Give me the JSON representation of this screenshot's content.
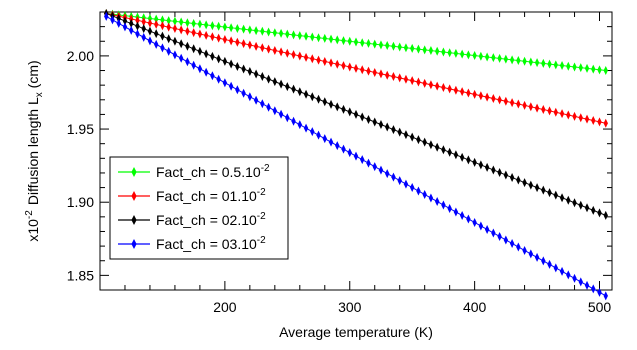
{
  "chart_data": {
    "type": "line",
    "x": {
      "label": "Average temperature (K)",
      "range": [
        100,
        510
      ],
      "ticks": [
        200,
        300,
        400,
        500
      ],
      "tick_labels": [
        "200",
        "300",
        "400",
        "500"
      ],
      "minor_step": 20
    },
    "y": {
      "label_prefix": "x10",
      "label_prefix_exponent": "-2",
      "label_main": "Diffusion length L",
      "label_sub": "x",
      "label_unit": " (cm)",
      "range": [
        1.84,
        2.03
      ],
      "ticks": [
        1.85,
        1.9,
        1.95,
        2.0
      ],
      "tick_labels": [
        "1.85",
        "1.90",
        "1.95",
        "2.00"
      ],
      "minor_step": 0.01
    },
    "series": [
      {
        "name_base": "Fact_ch = 0.5.10",
        "name_exp": "-2",
        "color": "#00ff00",
        "x": [
          105,
          505
        ],
        "y": [
          2.029,
          1.99
        ]
      },
      {
        "name_base": "Fact_ch = 01.10",
        "name_exp": "-2",
        "color": "#ff0000",
        "x": [
          105,
          505
        ],
        "y": [
          2.029,
          1.954
        ]
      },
      {
        "name_base": "Fact_ch = 02.10",
        "name_exp": "-2",
        "color": "#000000",
        "x": [
          105,
          505
        ],
        "y": [
          2.029,
          1.891
        ]
      },
      {
        "name_base": "Fact_ch = 03.10",
        "name_exp": "-2",
        "color": "#0000ff",
        "x": [
          105,
          505
        ],
        "y": [
          2.027,
          1.836
        ]
      }
    ],
    "marker": "diamond",
    "legend_position": "bottom-left",
    "grid": false
  }
}
